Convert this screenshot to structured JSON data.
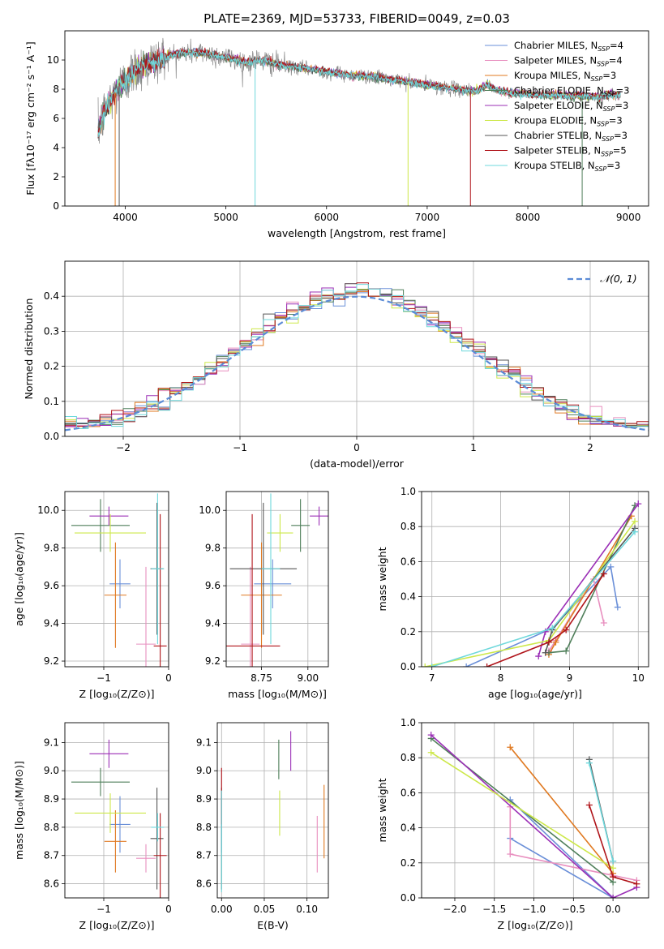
{
  "figure": {
    "title": "PLATE=2369, MJD=53733, FIBERID=0049, z=0.03"
  },
  "series_styles": [
    {
      "name": "Chabrier MILES",
      "nssp": "4",
      "color": "#6a8fd8"
    },
    {
      "name": "Salpeter MILES",
      "nssp": "4",
      "color": "#e88fbf"
    },
    {
      "name": "Kroupa MILES",
      "nssp": "3",
      "color": "#e07a22"
    },
    {
      "name": "Chabrier ELODIE",
      "nssp": "3",
      "color": "#4f7f5a"
    },
    {
      "name": "Salpeter ELODIE",
      "nssp": "3",
      "color": "#9b2fb6"
    },
    {
      "name": "Kroupa ELODIE",
      "nssp": "3",
      "color": "#cde84a"
    },
    {
      "name": "Chabrier STELIB",
      "nssp": "3",
      "color": "#555555"
    },
    {
      "name": "Salpeter STELIB",
      "nssp": "5",
      "color": "#b0141a"
    },
    {
      "name": "Kroupa STELIB",
      "nssp": "3",
      "color": "#6fd8dc"
    }
  ],
  "chart_data": [
    {
      "id": "spectrum",
      "type": "line",
      "xlabel": "wavelength [Angstrom, rest frame]",
      "ylabel": "Flux [fλ10⁻¹⁷ erg cm⁻² s⁻¹ A⁻¹]",
      "xlim": [
        3400,
        9200
      ],
      "ylim": [
        0,
        12
      ],
      "xticks": [
        4000,
        5000,
        6000,
        7000,
        8000,
        9000
      ],
      "yticks": [
        0,
        2,
        4,
        6,
        8,
        10
      ],
      "legend": "top-right",
      "continuum": [
        [
          3730,
          5.0
        ],
        [
          3800,
          6.6
        ],
        [
          3900,
          7.8
        ],
        [
          4000,
          8.6
        ],
        [
          4100,
          9.3
        ],
        [
          4200,
          9.7
        ],
        [
          4300,
          9.9
        ],
        [
          4400,
          10.2
        ],
        [
          4500,
          10.4
        ],
        [
          4600,
          10.5
        ],
        [
          4700,
          10.5
        ],
        [
          4800,
          10.5
        ],
        [
          4900,
          10.3
        ],
        [
          5000,
          10.2
        ],
        [
          5100,
          10.0
        ],
        [
          5200,
          9.8
        ],
        [
          5300,
          10.0
        ],
        [
          5400,
          9.9
        ],
        [
          5500,
          9.7
        ],
        [
          5600,
          9.6
        ],
        [
          5700,
          9.5
        ],
        [
          5800,
          9.4
        ],
        [
          5900,
          9.3
        ],
        [
          6000,
          9.2
        ],
        [
          6100,
          9.1
        ],
        [
          6200,
          9.0
        ],
        [
          6300,
          8.9
        ],
        [
          6400,
          8.9
        ],
        [
          6500,
          8.8
        ],
        [
          6600,
          8.7
        ],
        [
          6700,
          8.6
        ],
        [
          6800,
          8.5
        ],
        [
          6900,
          8.4
        ],
        [
          7000,
          8.3
        ],
        [
          7100,
          8.2
        ],
        [
          7200,
          8.1
        ],
        [
          7300,
          8.0
        ],
        [
          7400,
          7.9
        ],
        [
          7500,
          7.9
        ],
        [
          7600,
          8.3
        ],
        [
          7700,
          7.9
        ],
        [
          7800,
          7.8
        ],
        [
          7900,
          7.7
        ],
        [
          8000,
          7.7
        ],
        [
          8100,
          7.6
        ],
        [
          8200,
          7.6
        ],
        [
          8300,
          7.6
        ],
        [
          8400,
          7.5
        ],
        [
          8500,
          7.6
        ],
        [
          8600,
          7.5
        ],
        [
          8700,
          7.5
        ],
        [
          8800,
          7.6
        ],
        [
          8900,
          7.6
        ]
      ]
    },
    {
      "id": "residuals",
      "type": "histogram",
      "xlabel": "(data-model)/error",
      "ylabel": "Normed distribution",
      "xlim": [
        -2.5,
        2.5
      ],
      "ylim": [
        0,
        0.5
      ],
      "xticks": [
        -2,
        -1,
        0,
        1,
        2
      ],
      "yticks": [
        0.0,
        0.1,
        0.2,
        0.3,
        0.4
      ],
      "grid": true,
      "legend": "top-right",
      "reference_curve": {
        "label": "𝒩(0, 1)",
        "mean": 0,
        "sigma": 1
      },
      "bin_width": 0.1
    },
    {
      "id": "age_vs_Z",
      "type": "errorbar",
      "xlabel": "Z [log₁₀(Z/Z⊙)]",
      "ylabel": "age  [log₁₀(age/yr)]",
      "xlim": [
        -1.6,
        0.0
      ],
      "ylim": [
        9.17,
        10.1
      ],
      "xticks": [
        -1,
        0
      ],
      "yticks": [
        9.2,
        9.4,
        9.6,
        9.8,
        10.0
      ],
      "grid": true,
      "points": [
        {
          "series": 0,
          "x": -0.75,
          "xerr": 0.16,
          "y": 9.61,
          "yerr": 0.13
        },
        {
          "series": 1,
          "x": -0.35,
          "xerr": 0.15,
          "y": 9.29,
          "yerr": 0.41
        },
        {
          "series": 2,
          "x": -0.82,
          "xerr": 0.17,
          "y": 9.55,
          "yerr": 0.28
        },
        {
          "series": 3,
          "x": -1.05,
          "xerr": 0.45,
          "y": 9.92,
          "yerr": 0.14
        },
        {
          "series": 4,
          "x": -0.92,
          "xerr": 0.3,
          "y": 9.97,
          "yerr": 0.05
        },
        {
          "series": 5,
          "x": -0.9,
          "xerr": 0.55,
          "y": 9.88,
          "yerr": 0.1
        },
        {
          "series": 6,
          "x": -0.18,
          "xerr": 0.1,
          "y": 9.69,
          "yerr": 0.35
        },
        {
          "series": 7,
          "x": -0.13,
          "xerr": 0.1,
          "y": 9.28,
          "yerr": 0.7
        },
        {
          "series": 8,
          "x": -0.17,
          "xerr": 0.1,
          "y": 9.69,
          "yerr": 0.4
        }
      ]
    },
    {
      "id": "age_vs_mass",
      "type": "errorbar",
      "xlabel": "mass [log₁₀(M/M⊙)]",
      "ylabel": "",
      "xlim": [
        8.56,
        9.11
      ],
      "ylim": [
        9.17,
        10.1
      ],
      "xticks": [
        8.75,
        9.0
      ],
      "xticklabels": [
        "8.75",
        "9.00"
      ],
      "yticks": [
        9.2,
        9.4,
        9.6,
        9.8,
        10.0
      ],
      "grid": true,
      "points": [
        {
          "series": 0,
          "x": 8.81,
          "xerr": 0.1,
          "y": 9.61,
          "yerr": 0.13
        },
        {
          "series": 1,
          "x": 8.69,
          "xerr": 0.05,
          "y": 9.29,
          "yerr": 0.41
        },
        {
          "series": 2,
          "x": 8.75,
          "xerr": 0.11,
          "y": 9.55,
          "yerr": 0.28
        },
        {
          "series": 3,
          "x": 8.96,
          "xerr": 0.05,
          "y": 9.92,
          "yerr": 0.14
        },
        {
          "series": 4,
          "x": 9.06,
          "xerr": 0.05,
          "y": 9.97,
          "yerr": 0.05
        },
        {
          "series": 5,
          "x": 8.85,
          "xerr": 0.07,
          "y": 9.88,
          "yerr": 0.1
        },
        {
          "series": 6,
          "x": 8.76,
          "xerr": 0.18,
          "y": 9.69,
          "yerr": 0.35
        },
        {
          "series": 7,
          "x": 8.7,
          "xerr": 0.15,
          "y": 9.28,
          "yerr": 0.7
        },
        {
          "series": 8,
          "x": 8.8,
          "xerr": 0.05,
          "y": 9.69,
          "yerr": 0.4
        }
      ]
    },
    {
      "id": "weight_vs_age",
      "type": "line",
      "xlabel": "age  [log₁₀(age/yr)]",
      "ylabel": "mass weight",
      "xlim": [
        6.85,
        10.15
      ],
      "ylim": [
        0,
        1.0
      ],
      "xticks": [
        7,
        8,
        9,
        10
      ],
      "yticks": [
        0.0,
        0.2,
        0.4,
        0.6,
        0.8,
        1.0
      ],
      "grid": true,
      "lines": [
        {
          "series": 0,
          "x": [
            7.5,
            8.75,
            9.6,
            9.7
          ],
          "y": [
            0.0,
            0.22,
            0.57,
            0.34
          ]
        },
        {
          "series": 1,
          "x": [
            8.7,
            8.8,
            9.35,
            9.5
          ],
          "y": [
            0.09,
            0.15,
            0.5,
            0.25
          ]
        },
        {
          "series": 2,
          "x": [
            8.7,
            8.8,
            9.9
          ],
          "y": [
            0.07,
            0.14,
            0.86
          ]
        },
        {
          "series": 3,
          "x": [
            8.7,
            8.95,
            9.95
          ],
          "y": [
            0.08,
            0.09,
            0.92
          ]
        },
        {
          "series": 4,
          "x": [
            8.55,
            8.65,
            10.0
          ],
          "y": [
            0.06,
            0.2,
            0.93
          ]
        },
        {
          "series": 5,
          "x": [
            6.9,
            8.7,
            9.95
          ],
          "y": [
            0.0,
            0.15,
            0.83
          ]
        },
        {
          "series": 6,
          "x": [
            8.65,
            8.75,
            9.95
          ],
          "y": [
            0.08,
            0.21,
            0.79
          ]
        },
        {
          "series": 7,
          "x": [
            7.8,
            8.7,
            8.95,
            9.5
          ],
          "y": [
            0.0,
            0.14,
            0.21,
            0.53
          ]
        },
        {
          "series": 8,
          "x": [
            7.0,
            8.75,
            9.95
          ],
          "y": [
            0.0,
            0.22,
            0.77
          ]
        }
      ]
    },
    {
      "id": "mass_vs_Z",
      "type": "errorbar",
      "xlabel": "Z [log₁₀(Z/Z⊙)]",
      "ylabel": "mass [log₁₀(M/M⊙)]",
      "xlim": [
        -1.6,
        0.0
      ],
      "ylim": [
        8.55,
        9.17
      ],
      "xticks": [
        -1,
        0
      ],
      "yticks": [
        8.6,
        8.7,
        8.8,
        8.9,
        9.0,
        9.1
      ],
      "grid": true,
      "points": [
        {
          "series": 0,
          "x": -0.75,
          "xerr": 0.16,
          "y": 8.81,
          "yerr": 0.1
        },
        {
          "series": 1,
          "x": -0.35,
          "xerr": 0.15,
          "y": 8.69,
          "yerr": 0.05
        },
        {
          "series": 2,
          "x": -0.82,
          "xerr": 0.17,
          "y": 8.75,
          "yerr": 0.11
        },
        {
          "series": 3,
          "x": -1.05,
          "xerr": 0.45,
          "y": 8.96,
          "yerr": 0.05
        },
        {
          "series": 4,
          "x": -0.92,
          "xerr": 0.3,
          "y": 9.06,
          "yerr": 0.05
        },
        {
          "series": 5,
          "x": -0.9,
          "xerr": 0.55,
          "y": 8.85,
          "yerr": 0.07
        },
        {
          "series": 6,
          "x": -0.18,
          "xerr": 0.1,
          "y": 8.76,
          "yerr": 0.18
        },
        {
          "series": 7,
          "x": -0.13,
          "xerr": 0.1,
          "y": 8.7,
          "yerr": 0.15
        },
        {
          "series": 8,
          "x": -0.17,
          "xerr": 0.1,
          "y": 8.8,
          "yerr": 0.05
        }
      ]
    },
    {
      "id": "mass_vs_ebv",
      "type": "errorbar",
      "xlabel": "E(B-V)",
      "ylabel": "",
      "xlim": [
        -0.005,
        0.125
      ],
      "ylim": [
        8.55,
        9.17
      ],
      "xticks": [
        0.0,
        0.05,
        0.1
      ],
      "xticklabels": [
        "0.00",
        "0.05",
        "0.10"
      ],
      "yticks": [
        8.6,
        8.7,
        8.8,
        8.9,
        9.0,
        9.1
      ],
      "grid": true,
      "points": [
        {
          "series": 0,
          "x": 0.0,
          "y": 8.81,
          "yerr": 0.1
        },
        {
          "series": 1,
          "x": 0.112,
          "y": 8.74,
          "yerr": 0.1
        },
        {
          "series": 2,
          "x": 0.12,
          "y": 8.82,
          "yerr": 0.13
        },
        {
          "series": 3,
          "x": 0.067,
          "y": 9.04,
          "yerr": 0.07
        },
        {
          "series": 4,
          "x": 0.081,
          "y": 9.07,
          "yerr": 0.07
        },
        {
          "series": 5,
          "x": 0.068,
          "y": 8.85,
          "yerr": 0.08
        },
        {
          "series": 6,
          "x": 0.0,
          "y": 8.76,
          "yerr": 0.18
        },
        {
          "series": 7,
          "x": 0.0,
          "y": 8.91,
          "yerr": 0.1
        },
        {
          "series": 8,
          "x": 0.0,
          "y": 8.75,
          "yerr": 0.18
        }
      ]
    },
    {
      "id": "weight_vs_Z",
      "type": "line",
      "xlabel": "Z [log₁₀(Z/Z⊙)]",
      "ylabel": "mass weight",
      "xlim": [
        -2.42,
        0.45
      ],
      "ylim": [
        0,
        1.0
      ],
      "xticks": [
        -2.0,
        -1.5,
        -1.0,
        -0.5,
        0.0
      ],
      "xticklabels": [
        "−2.0",
        "−1.5",
        "−1.0",
        "−0.5",
        "0.0"
      ],
      "yticks": [
        0.0,
        0.2,
        0.4,
        0.6,
        0.8,
        1.0
      ],
      "grid": true,
      "lines": [
        {
          "series": 0,
          "x": [
            -1.3,
            0.0,
            -1.3
          ],
          "y": [
            0.56,
            0.0,
            0.34
          ]
        },
        {
          "series": 1,
          "x": [
            -1.3,
            -1.3,
            0.3
          ],
          "y": [
            0.52,
            0.25,
            0.1
          ]
        },
        {
          "series": 2,
          "x": [
            -1.3,
            0.0
          ],
          "y": [
            0.86,
            0.14
          ]
        },
        {
          "series": 3,
          "x": [
            -2.3,
            0.0
          ],
          "y": [
            0.91,
            0.09
          ]
        },
        {
          "series": 4,
          "x": [
            -2.3,
            0.0,
            0.3
          ],
          "y": [
            0.93,
            0.0,
            0.06
          ]
        },
        {
          "series": 5,
          "x": [
            -2.3,
            0.0
          ],
          "y": [
            0.83,
            0.17
          ]
        },
        {
          "series": 6,
          "x": [
            -0.3,
            0.0
          ],
          "y": [
            0.79,
            0.21
          ]
        },
        {
          "series": 7,
          "x": [
            -0.3,
            0.0,
            0.3
          ],
          "y": [
            0.53,
            0.12,
            0.08
          ]
        },
        {
          "series": 8,
          "x": [
            -0.3,
            0.0
          ],
          "y": [
            0.77,
            0.21
          ]
        }
      ]
    }
  ]
}
